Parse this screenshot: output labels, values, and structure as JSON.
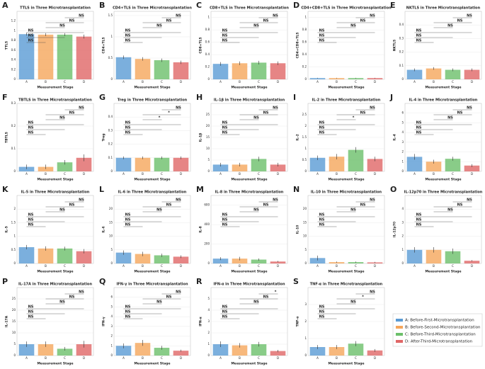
{
  "legend": [
    {
      "name": "A: Before-First-Microtransplantation",
      "color": "#5a9bd4"
    },
    {
      "name": "B: Before-Second-Microtransplantation",
      "color": "#f5a65b"
    },
    {
      "name": "C: Before-Third-Microtransplantation",
      "color": "#6cbf6a"
    },
    {
      "name": "D: After-Third-Microtransplantation",
      "color": "#e06666"
    }
  ],
  "chart_data": [
    {
      "type": "bar",
      "letter": "A",
      "title": "TTLS in Three Microtransplantation",
      "xlabel": "Measurement Stage",
      "ylabel": "TTLS",
      "categories": [
        "A",
        "B",
        "C",
        "D"
      ],
      "values": [
        0.93,
        0.92,
        0.92,
        0.88
      ],
      "errors": [
        0.03,
        0.03,
        0.03,
        0.04
      ],
      "ylim": [
        0,
        1.4
      ],
      "yticks": [
        0,
        0.2,
        0.4,
        0.6,
        0.8,
        1.0,
        1.2
      ],
      "comparisons": [
        "NS",
        "NS",
        "NS",
        "NS",
        "NS",
        "NS"
      ]
    },
    {
      "type": "bar",
      "letter": "B",
      "title": "CD4+TLS in Three Microtransplantation",
      "xlabel": "Measurement Stage",
      "ylabel": "CD4+TLS",
      "categories": [
        "A",
        "B",
        "C",
        "D"
      ],
      "values": [
        0.52,
        0.48,
        0.45,
        0.4
      ],
      "errors": [
        0.04,
        0.04,
        0.04,
        0.04
      ],
      "ylim": [
        0,
        1.6
      ],
      "yticks": [
        0,
        0.5,
        1.0,
        1.5
      ],
      "comparisons": [
        "NS",
        "NS",
        "NS",
        "NS",
        "NS",
        "NS"
      ]
    },
    {
      "type": "bar",
      "letter": "C",
      "title": "CD8+TLS in Three Microtransplantation",
      "xlabel": "Measurement Stage",
      "ylabel": "CD8+TLS",
      "categories": [
        "A",
        "B",
        "C",
        "D"
      ],
      "values": [
        0.25,
        0.26,
        0.27,
        0.26
      ],
      "errors": [
        0.03,
        0.03,
        0.03,
        0.03
      ],
      "ylim": [
        0,
        1.1
      ],
      "yticks": [
        0,
        0.2,
        0.4,
        0.6,
        0.8,
        1.0
      ],
      "comparisons": [
        "NS",
        "NS",
        "NS",
        "NS",
        "NS",
        "NS"
      ]
    },
    {
      "type": "bar",
      "letter": "D",
      "title": "CD4+CD8+TLS in Three Microtransplantation",
      "xlabel": "Measurement Stage",
      "ylabel": "CD4+CD8+TLS",
      "categories": [
        "A",
        "B",
        "C",
        "D"
      ],
      "values": [
        0.02,
        0.02,
        0.02,
        0.02
      ],
      "errors": [
        0.005,
        0.005,
        0.005,
        0.005
      ],
      "ylim": [
        0,
        1.1
      ],
      "yticks": [
        0,
        0.2,
        0.4,
        0.6,
        0.8,
        1.0
      ],
      "comparisons": [
        "NS",
        "NS",
        "NS",
        "NS",
        "NS",
        "NS"
      ]
    },
    {
      "type": "bar",
      "letter": "E",
      "title": "NKTLS in Three Microtransplantation",
      "xlabel": "Measurement Stage",
      "ylabel": "NKTLS",
      "categories": [
        "A",
        "B",
        "C",
        "D"
      ],
      "values": [
        0.07,
        0.08,
        0.07,
        0.07
      ],
      "errors": [
        0.01,
        0.01,
        0.01,
        0.01
      ],
      "ylim": [
        0,
        0.5
      ],
      "yticks": [
        0,
        0.1,
        0.2,
        0.3,
        0.4
      ],
      "comparisons": [
        "NS",
        "NS",
        "NS",
        "NS",
        "NS",
        "NS"
      ]
    },
    {
      "type": "bar",
      "letter": "F",
      "title": "TBTLS in Three Microtransplantation",
      "xlabel": "Measurement Stage",
      "ylabel": "TBTLS",
      "categories": [
        "A",
        "B",
        "C",
        "D"
      ],
      "values": [
        0.02,
        0.02,
        0.04,
        0.06
      ],
      "errors": [
        0.01,
        0.01,
        0.01,
        0.015
      ],
      "ylim": [
        0,
        0.3
      ],
      "yticks": [
        0,
        0.1,
        0.2,
        0.3
      ],
      "comparisons": [
        "NS",
        "NS",
        "NS",
        "NS",
        "NS",
        "NS"
      ]
    },
    {
      "type": "bar",
      "letter": "G",
      "title": "Treg in Three Microtransplantation",
      "xlabel": "Measurement Stage",
      "ylabel": "Treg",
      "categories": [
        "A",
        "B",
        "C",
        "D"
      ],
      "values": [
        0.1,
        0.1,
        0.1,
        0.1
      ],
      "errors": [
        0.01,
        0.01,
        0.01,
        0.01
      ],
      "ylim": [
        0,
        0.5
      ],
      "yticks": [
        0,
        0.1,
        0.2,
        0.3,
        0.4
      ],
      "comparisons": [
        "NS",
        "NS",
        "NS",
        "*",
        "*",
        "NS"
      ]
    },
    {
      "type": "bar",
      "letter": "H",
      "title": "IL-1β in Three Microtransplantation",
      "xlabel": "Measurement Stage",
      "ylabel": "IL-1β",
      "categories": [
        "A",
        "B",
        "C",
        "D"
      ],
      "values": [
        3,
        3,
        5.5,
        3
      ],
      "errors": [
        0.8,
        0.8,
        1.0,
        0.8
      ],
      "ylim": [
        0,
        30
      ],
      "yticks": [
        0,
        5,
        10,
        15,
        20,
        25
      ],
      "comparisons": [
        "NS",
        "NS",
        "NS",
        "NS",
        "NS",
        "NS"
      ]
    },
    {
      "type": "bar",
      "letter": "I",
      "title": "IL-2 in Three Microtransplantation",
      "xlabel": "Measurement Stage",
      "ylabel": "IL-2",
      "categories": [
        "A",
        "B",
        "C",
        "D"
      ],
      "values": [
        0.6,
        0.65,
        0.95,
        0.55
      ],
      "errors": [
        0.1,
        0.12,
        0.12,
        0.1
      ],
      "ylim": [
        0,
        3
      ],
      "yticks": [
        0,
        0.5,
        1.0,
        1.5,
        2.0,
        2.5
      ],
      "comparisons": [
        "NS",
        "NS",
        "NS",
        "*",
        "NS",
        "NS"
      ]
    },
    {
      "type": "bar",
      "letter": "J",
      "title": "IL-4 in Three Microtransplantation",
      "xlabel": "Measurement Stage",
      "ylabel": "IL-4",
      "categories": [
        "A",
        "B",
        "C",
        "D"
      ],
      "values": [
        1.5,
        1.0,
        1.3,
        0.6
      ],
      "errors": [
        0.3,
        0.2,
        0.2,
        0.15
      ],
      "ylim": [
        0,
        7
      ],
      "yticks": [
        0,
        1,
        2,
        3,
        4,
        5,
        6
      ],
      "comparisons": [
        "NS",
        "NS",
        "NS",
        "NS",
        "NS",
        "NS"
      ]
    },
    {
      "type": "bar",
      "letter": "K",
      "title": "IL-5 in Three Microtransplantation",
      "xlabel": "Measurement Stage",
      "ylabel": "IL-5",
      "categories": [
        "A",
        "B",
        "C",
        "D"
      ],
      "values": [
        0.6,
        0.55,
        0.55,
        0.45
      ],
      "errors": [
        0.08,
        0.08,
        0.07,
        0.08
      ],
      "ylim": [
        0,
        2.5
      ],
      "yticks": [
        0,
        0.5,
        1.0,
        1.5,
        2.0
      ],
      "comparisons": [
        "NS",
        "NS",
        "NS",
        "NS",
        "NS",
        "NS"
      ]
    },
    {
      "type": "bar",
      "letter": "L",
      "title": "IL-6 in Three Microtransplantation",
      "xlabel": "Measurement Stage",
      "ylabel": "IL-6",
      "categories": [
        "A",
        "B",
        "C",
        "D"
      ],
      "values": [
        4,
        3.5,
        3,
        2.5
      ],
      "errors": [
        0.8,
        0.8,
        0.6,
        0.5
      ],
      "ylim": [
        0,
        25
      ],
      "yticks": [
        0,
        5,
        10,
        15,
        20
      ],
      "comparisons": [
        "NS",
        "NS",
        "NS",
        "NS",
        "NS",
        "NS"
      ]
    },
    {
      "type": "bar",
      "letter": "M",
      "title": "IL-8 in Three Microtransplantation",
      "xlabel": "Measurement Stage",
      "ylabel": "IL-8",
      "categories": [
        "A",
        "B",
        "C",
        "D"
      ],
      "values": [
        50,
        50,
        40,
        20
      ],
      "errors": [
        15,
        18,
        12,
        6
      ],
      "ylim": [
        0,
        700
      ],
      "yticks": [
        0,
        200,
        400,
        600
      ],
      "comparisons": [
        "NS",
        "NS",
        "NS",
        "NS",
        "NS",
        "NS"
      ]
    },
    {
      "type": "bar",
      "letter": "N",
      "title": "IL-10 in Three Microtransplantation",
      "xlabel": "Measurement Stage",
      "ylabel": "IL-10",
      "categories": [
        "A",
        "B",
        "C",
        "D"
      ],
      "values": [
        2,
        0.5,
        0.5,
        0.4
      ],
      "errors": [
        0.9,
        0.2,
        0.2,
        0.2
      ],
      "ylim": [
        0,
        25
      ],
      "yticks": [
        0,
        5,
        10,
        15,
        20
      ],
      "comparisons": [
        "NS",
        "NS",
        "NS",
        "NS",
        "NS",
        "NS"
      ]
    },
    {
      "type": "bar",
      "letter": "O",
      "title": "IL-12p70 in Three Microtransplantation",
      "xlabel": "Measurement Stage",
      "ylabel": "IL-12p70",
      "categories": [
        "A",
        "B",
        "C",
        "D"
      ],
      "values": [
        1,
        1,
        0.9,
        0.2
      ],
      "errors": [
        0.2,
        0.2,
        0.2,
        0.05
      ],
      "ylim": [
        0,
        5
      ],
      "yticks": [
        0,
        1,
        2,
        3,
        4
      ],
      "comparisons": [
        "NS",
        "NS",
        "NS",
        "NS",
        "NS",
        "NS"
      ]
    },
    {
      "type": "bar",
      "letter": "P",
      "title": "IL-17A in Three Microtransplantation",
      "xlabel": "Measurement Stage",
      "ylabel": "IL-17A",
      "categories": [
        "A",
        "B",
        "C",
        "D"
      ],
      "values": [
        5,
        5,
        3,
        5
      ],
      "errors": [
        1.2,
        1.2,
        0.8,
        1.5
      ],
      "ylim": [
        0,
        30
      ],
      "yticks": [
        0,
        5,
        10,
        15,
        20,
        25
      ],
      "comparisons": [
        "NS",
        "NS",
        "NS",
        "NS",
        "NS",
        "NS"
      ]
    },
    {
      "type": "bar",
      "letter": "Q",
      "title": "IFN-γ in Three Microtransplantation",
      "xlabel": "Measurement Stage",
      "ylabel": "IFN-γ",
      "categories": [
        "A",
        "B",
        "C",
        "D"
      ],
      "values": [
        1,
        1.3,
        0.8,
        0.5
      ],
      "errors": [
        0.25,
        0.3,
        0.2,
        0.1
      ],
      "ylim": [
        0,
        7
      ],
      "yticks": [
        0,
        1,
        2,
        3,
        4,
        5,
        6
      ],
      "comparisons": [
        "NS",
        "NS",
        "NS",
        "NS",
        "NS",
        "NS"
      ]
    },
    {
      "type": "bar",
      "letter": "R",
      "title": "IFN-α in Three Microtransplantation",
      "xlabel": "Measurement Stage",
      "ylabel": "IFN-α",
      "categories": [
        "A",
        "B",
        "C",
        "D"
      ],
      "values": [
        1,
        0.9,
        1.0,
        0.4
      ],
      "errors": [
        0.25,
        0.2,
        0.2,
        0.1
      ],
      "ylim": [
        0,
        6
      ],
      "yticks": [
        0,
        1,
        2,
        3,
        4,
        5
      ],
      "comparisons": [
        "NS",
        "NS",
        "NS",
        "NS",
        "NS",
        "*"
      ]
    },
    {
      "type": "bar",
      "letter": "S",
      "title": "TNF-α in Three Microtransplantation",
      "xlabel": "Measurement Stage",
      "ylabel": "TNF-α",
      "categories": [
        "A",
        "B",
        "C",
        "D"
      ],
      "values": [
        0.5,
        0.5,
        0.7,
        0.3
      ],
      "errors": [
        0.12,
        0.12,
        0.15,
        0.08
      ],
      "ylim": [
        0,
        4
      ],
      "yticks": [
        0,
        1,
        2,
        3
      ],
      "comparisons": [
        "NS",
        "NS",
        "NS",
        "NS",
        "*",
        "NS"
      ]
    }
  ]
}
